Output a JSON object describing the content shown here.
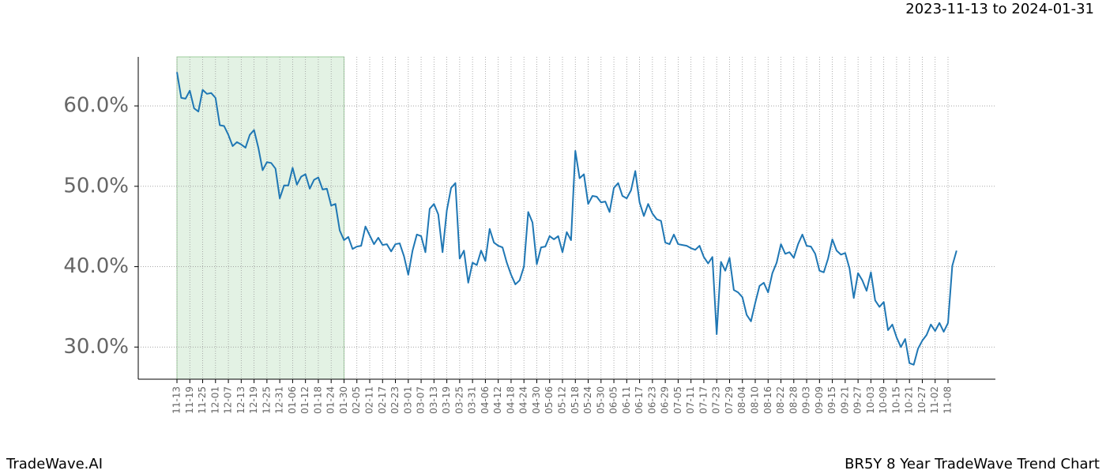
{
  "chart_data": {
    "type": "line",
    "date_range": "2023-11-13 to 2024-01-31",
    "footer_left": "TradeWave.AI",
    "footer_right": "BR5Y 8 Year TradeWave Trend Chart",
    "shaded_range": [
      "11-13",
      "01-30"
    ],
    "shade_color": "#c8e6c9",
    "color": "#1f77b4",
    "grid": true,
    "ylim": [
      26,
      66.1
    ],
    "yticks": [
      {
        "value": 30,
        "label": "30.0%"
      },
      {
        "value": 40,
        "label": "40.0%"
      },
      {
        "value": 50,
        "label": "50.0%"
      },
      {
        "value": 60,
        "label": "60.0%"
      }
    ],
    "categories": [
      "11-13",
      null,
      null,
      "11-19",
      null,
      null,
      "11-25",
      null,
      null,
      "12-01",
      null,
      null,
      "12-07",
      null,
      null,
      "12-13",
      null,
      null,
      "12-19",
      null,
      null,
      "12-25",
      null,
      null,
      "12-31",
      null,
      null,
      "01-06",
      null,
      null,
      "01-12",
      null,
      null,
      "01-18",
      null,
      null,
      "01-24",
      null,
      null,
      "01-30",
      null,
      null,
      "02-05",
      null,
      null,
      "02-11",
      null,
      null,
      "02-17",
      null,
      null,
      "02-23",
      null,
      null,
      "03-01",
      null,
      null,
      "03-07",
      null,
      null,
      "03-13",
      null,
      null,
      "03-19",
      null,
      null,
      "03-25",
      null,
      null,
      "03-31",
      null,
      null,
      "04-06",
      null,
      null,
      "04-12",
      null,
      null,
      "04-18",
      null,
      null,
      "04-24",
      null,
      null,
      "04-30",
      null,
      null,
      "05-06",
      null,
      null,
      "05-12",
      null,
      null,
      "05-18",
      null,
      null,
      "05-24",
      null,
      null,
      "05-30",
      null,
      null,
      "06-05",
      null,
      null,
      "06-11",
      null,
      null,
      "06-17",
      null,
      null,
      "06-23",
      null,
      null,
      "06-29",
      null,
      null,
      "07-05",
      null,
      null,
      "07-11",
      null,
      null,
      "07-17",
      null,
      null,
      "07-23",
      null,
      null,
      "07-29",
      null,
      null,
      "08-04",
      null,
      null,
      "08-10",
      null,
      null,
      "08-16",
      null,
      null,
      "08-22",
      null,
      null,
      "08-28",
      null,
      null,
      "09-03",
      null,
      null,
      "09-09",
      null,
      null,
      "09-15",
      null,
      null,
      "09-21",
      null,
      null,
      "09-27",
      null,
      null,
      "10-03",
      null,
      null,
      "10-09",
      null,
      null,
      "10-15",
      null,
      null,
      "10-21",
      null,
      null,
      "10-27",
      null,
      null,
      "11-02",
      null,
      null,
      "11-08",
      null,
      null
    ],
    "values": [
      64.2,
      61.0,
      60.9,
      61.9,
      59.7,
      59.3,
      62.0,
      61.5,
      61.6,
      61.0,
      57.6,
      57.5,
      56.4,
      55.0,
      55.5,
      55.2,
      54.8,
      56.4,
      57.0,
      54.8,
      52.0,
      53.0,
      52.9,
      52.2,
      48.5,
      50.1,
      50.1,
      52.3,
      50.2,
      51.2,
      51.5,
      49.7,
      50.8,
      51.1,
      49.6,
      49.7,
      47.6,
      47.8,
      44.5,
      43.3,
      43.7,
      42.2,
      42.5,
      42.6,
      45.0,
      43.9,
      42.8,
      43.6,
      42.7,
      42.8,
      41.9,
      42.8,
      42.9,
      41.3,
      39.0,
      42.0,
      44.0,
      43.8,
      41.8,
      47.2,
      47.8,
      46.5,
      41.8,
      47.0,
      49.8,
      50.4,
      41.0,
      42.0,
      38.0,
      40.5,
      40.2,
      42.0,
      40.7,
      44.7,
      43.0,
      42.6,
      42.4,
      40.5,
      39.0,
      37.8,
      38.3,
      40.0,
      46.8,
      45.5,
      40.3,
      42.4,
      42.5,
      43.8,
      43.4,
      43.8,
      41.8,
      44.3,
      43.3,
      54.4,
      51.0,
      51.5,
      47.8,
      48.8,
      48.7,
      48.0,
      48.1,
      46.8,
      49.8,
      50.4,
      48.8,
      48.5,
      49.5,
      51.9,
      48.0,
      46.3,
      47.8,
      46.6,
      45.9,
      45.7,
      43.0,
      42.8,
      44.0,
      42.8,
      42.7,
      42.6,
      42.3,
      42.1,
      42.6,
      41.2,
      40.4,
      41.2,
      31.6,
      40.6,
      39.5,
      41.1,
      37.1,
      36.8,
      36.2,
      34.0,
      33.2,
      35.5,
      37.6,
      38.0,
      36.8,
      39.2,
      40.5,
      42.8,
      41.6,
      41.8,
      41.1,
      42.8,
      44.0,
      42.6,
      42.5,
      41.6,
      39.5,
      39.3,
      41.0,
      43.4,
      42.0,
      41.5,
      41.7,
      39.8,
      36.1,
      39.2,
      38.3,
      37.0,
      39.3,
      35.8,
      35.0,
      35.6,
      32.1,
      32.8,
      31.2,
      30.0,
      31.0,
      28.0,
      27.8,
      29.8,
      30.8,
      31.5,
      32.8,
      32.0,
      33.0,
      31.9,
      33.0,
      40.1,
      42.0
    ]
  }
}
